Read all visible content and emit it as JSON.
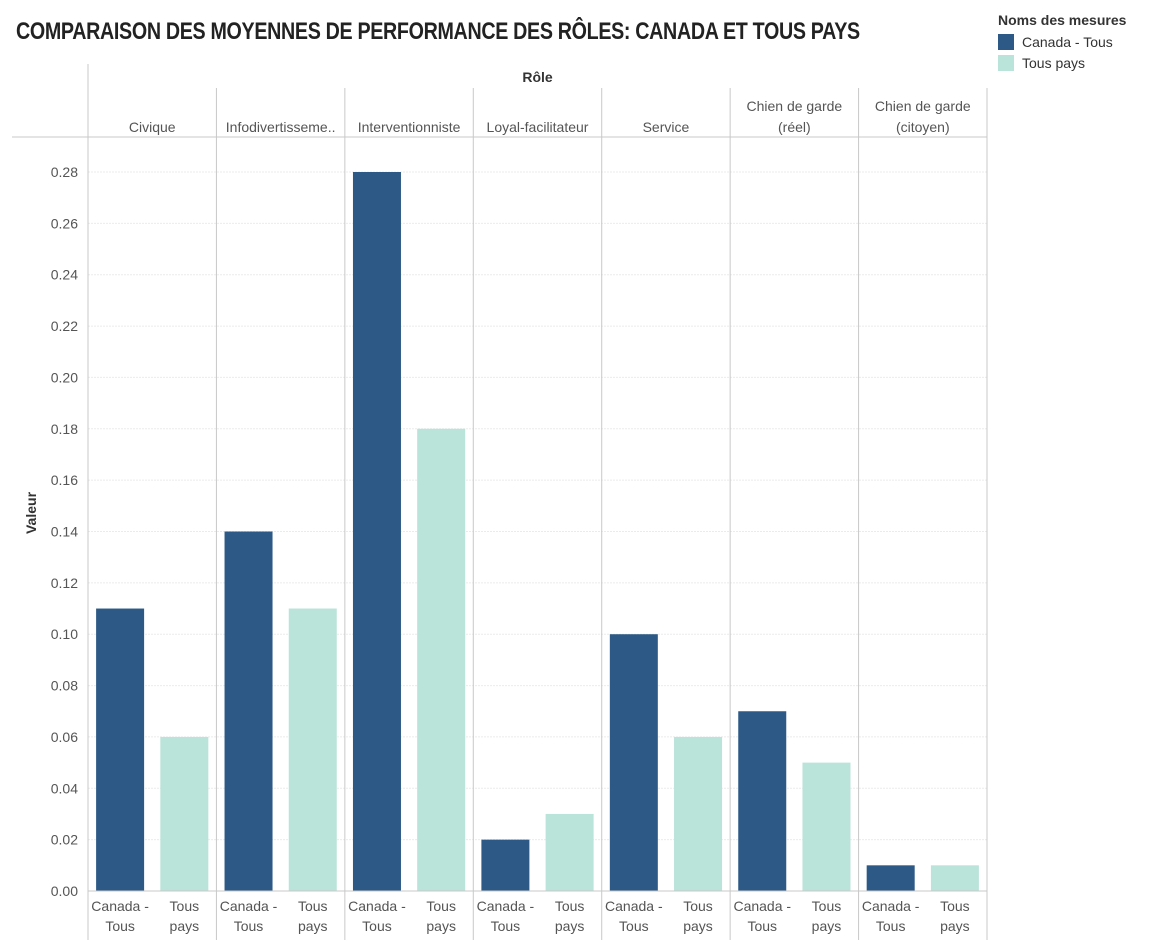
{
  "header": {
    "title": "COMPARAISON DES MOYENNES DE PERFORMANCE DES RÔLES: CANADA ET TOUS PAYS"
  },
  "legend": {
    "title": "Noms des mesures",
    "items": [
      {
        "label": "Canada - Tous",
        "color": "#2c5985"
      },
      {
        "label": "Tous pays",
        "color": "#bae4d9"
      }
    ]
  },
  "chart_data": {
    "type": "bar",
    "title": "COMPARAISON DES MOYENNES DE PERFORMANCE DES RÔLES: CANADA ET TOUS PAYS",
    "column_header": "Rôle",
    "ylabel": "Valeur",
    "ylim": [
      0,
      0.29
    ],
    "yticks": [
      "0.00",
      "0.02",
      "0.04",
      "0.06",
      "0.08",
      "0.10",
      "0.12",
      "0.14",
      "0.16",
      "0.18",
      "0.20",
      "0.22",
      "0.24",
      "0.26",
      "0.28"
    ],
    "grid": true,
    "legend_position": "top-right",
    "categories": [
      [
        "Civique"
      ],
      [
        "Infodivertisseme.."
      ],
      [
        "Interventionniste"
      ],
      [
        "Loyal-facilitateur"
      ],
      [
        "Service"
      ],
      [
        "Chien de garde",
        "(réel)"
      ],
      [
        "Chien de garde",
        "(citoyen)"
      ]
    ],
    "bar_labels": {
      "Canada - Tous": [
        "Canada -",
        "Tous"
      ],
      "Tous pays": [
        "Tous",
        "pays"
      ]
    },
    "series": [
      {
        "name": "Canada - Tous",
        "color": "#2c5985",
        "values": [
          0.11,
          0.14,
          0.28,
          0.02,
          0.1,
          0.07,
          0.01
        ]
      },
      {
        "name": "Tous pays",
        "color": "#bae4d9",
        "values": [
          0.06,
          0.11,
          0.18,
          0.03,
          0.06,
          0.05,
          0.01
        ]
      }
    ]
  }
}
